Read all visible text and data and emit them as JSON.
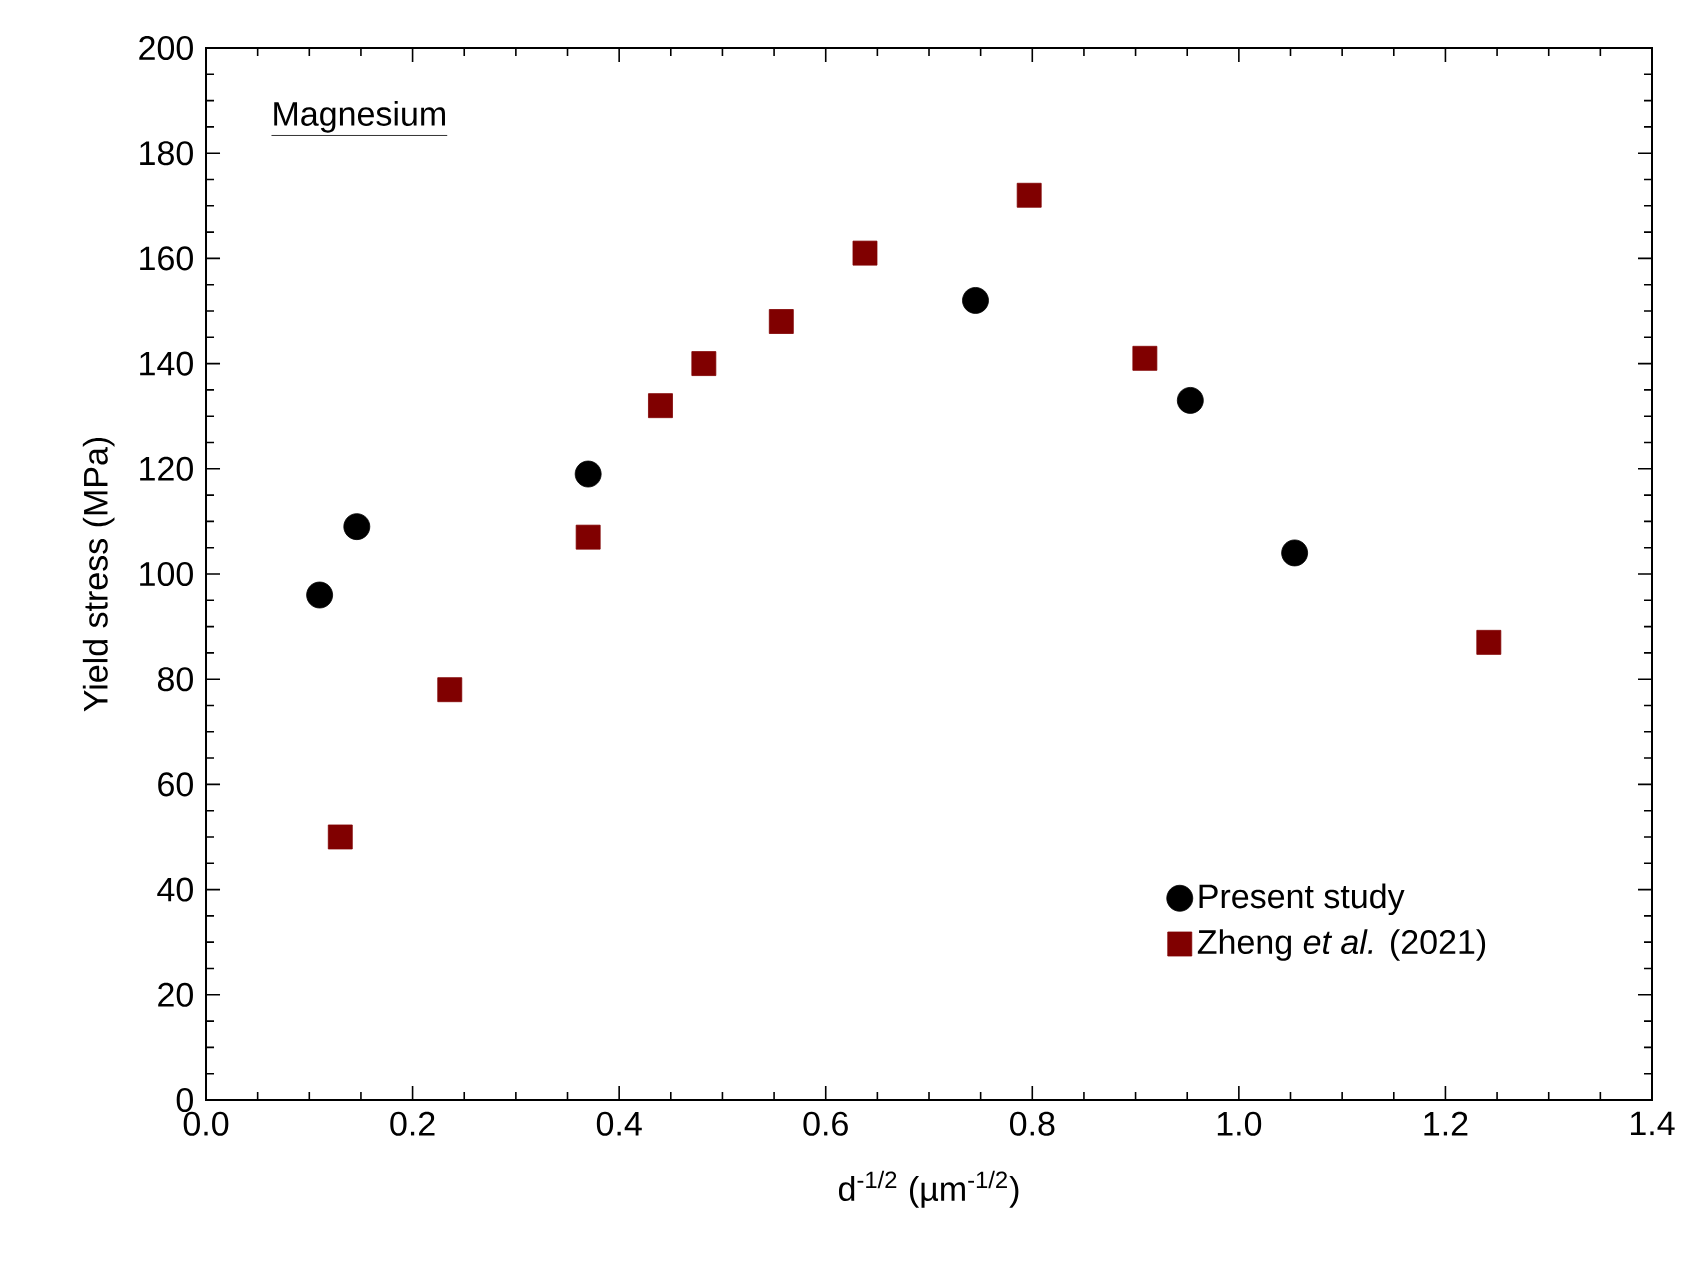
{
  "chart_data": {
    "type": "scatter",
    "xlabel": "d$^{-1/2}$ (µm$^{-1/2}$)",
    "ylabel": "Yield stress (MPa)",
    "annotations": [
      "Magnesium"
    ],
    "xlim": [
      0,
      1.4
    ],
    "xticks": [
      {
        "value": 0,
        "label": "0.0"
      },
      {
        "value": 0.2,
        "label": "0.2"
      },
      {
        "value": 0.4,
        "label": "0.4"
      },
      {
        "value": 0.6,
        "label": "0.6"
      },
      {
        "value": 0.8,
        "label": "0.8"
      },
      {
        "value": 1.0,
        "label": "1.0"
      },
      {
        "value": 1.2,
        "label": "1.2"
      },
      {
        "value": 1.4,
        "label": "1.4"
      }
    ],
    "ylim": [
      0,
      200
    ],
    "yticks": [
      0,
      20,
      40,
      60,
      80,
      100,
      120,
      140,
      160,
      180,
      200
    ],
    "grid": false,
    "legend": "bottom right",
    "series": [
      {
        "name": "Present study",
        "color": "#000000",
        "marker": "circle",
        "x": [
          0.11,
          0.146,
          0.37,
          0.745,
          0.953,
          1.054
        ],
        "values": [
          96,
          109,
          119,
          152,
          133,
          104
        ]
      },
      {
        "name": "Zheng *et al.* (2021)",
        "color": "#800000",
        "marker": "square",
        "x": [
          0.13,
          0.236,
          0.37,
          0.44,
          0.482,
          0.557,
          0.638,
          0.797,
          0.909,
          1.242
        ],
        "values": [
          50,
          78,
          107,
          132,
          140,
          148,
          161,
          172,
          141,
          87
        ]
      }
    ]
  }
}
